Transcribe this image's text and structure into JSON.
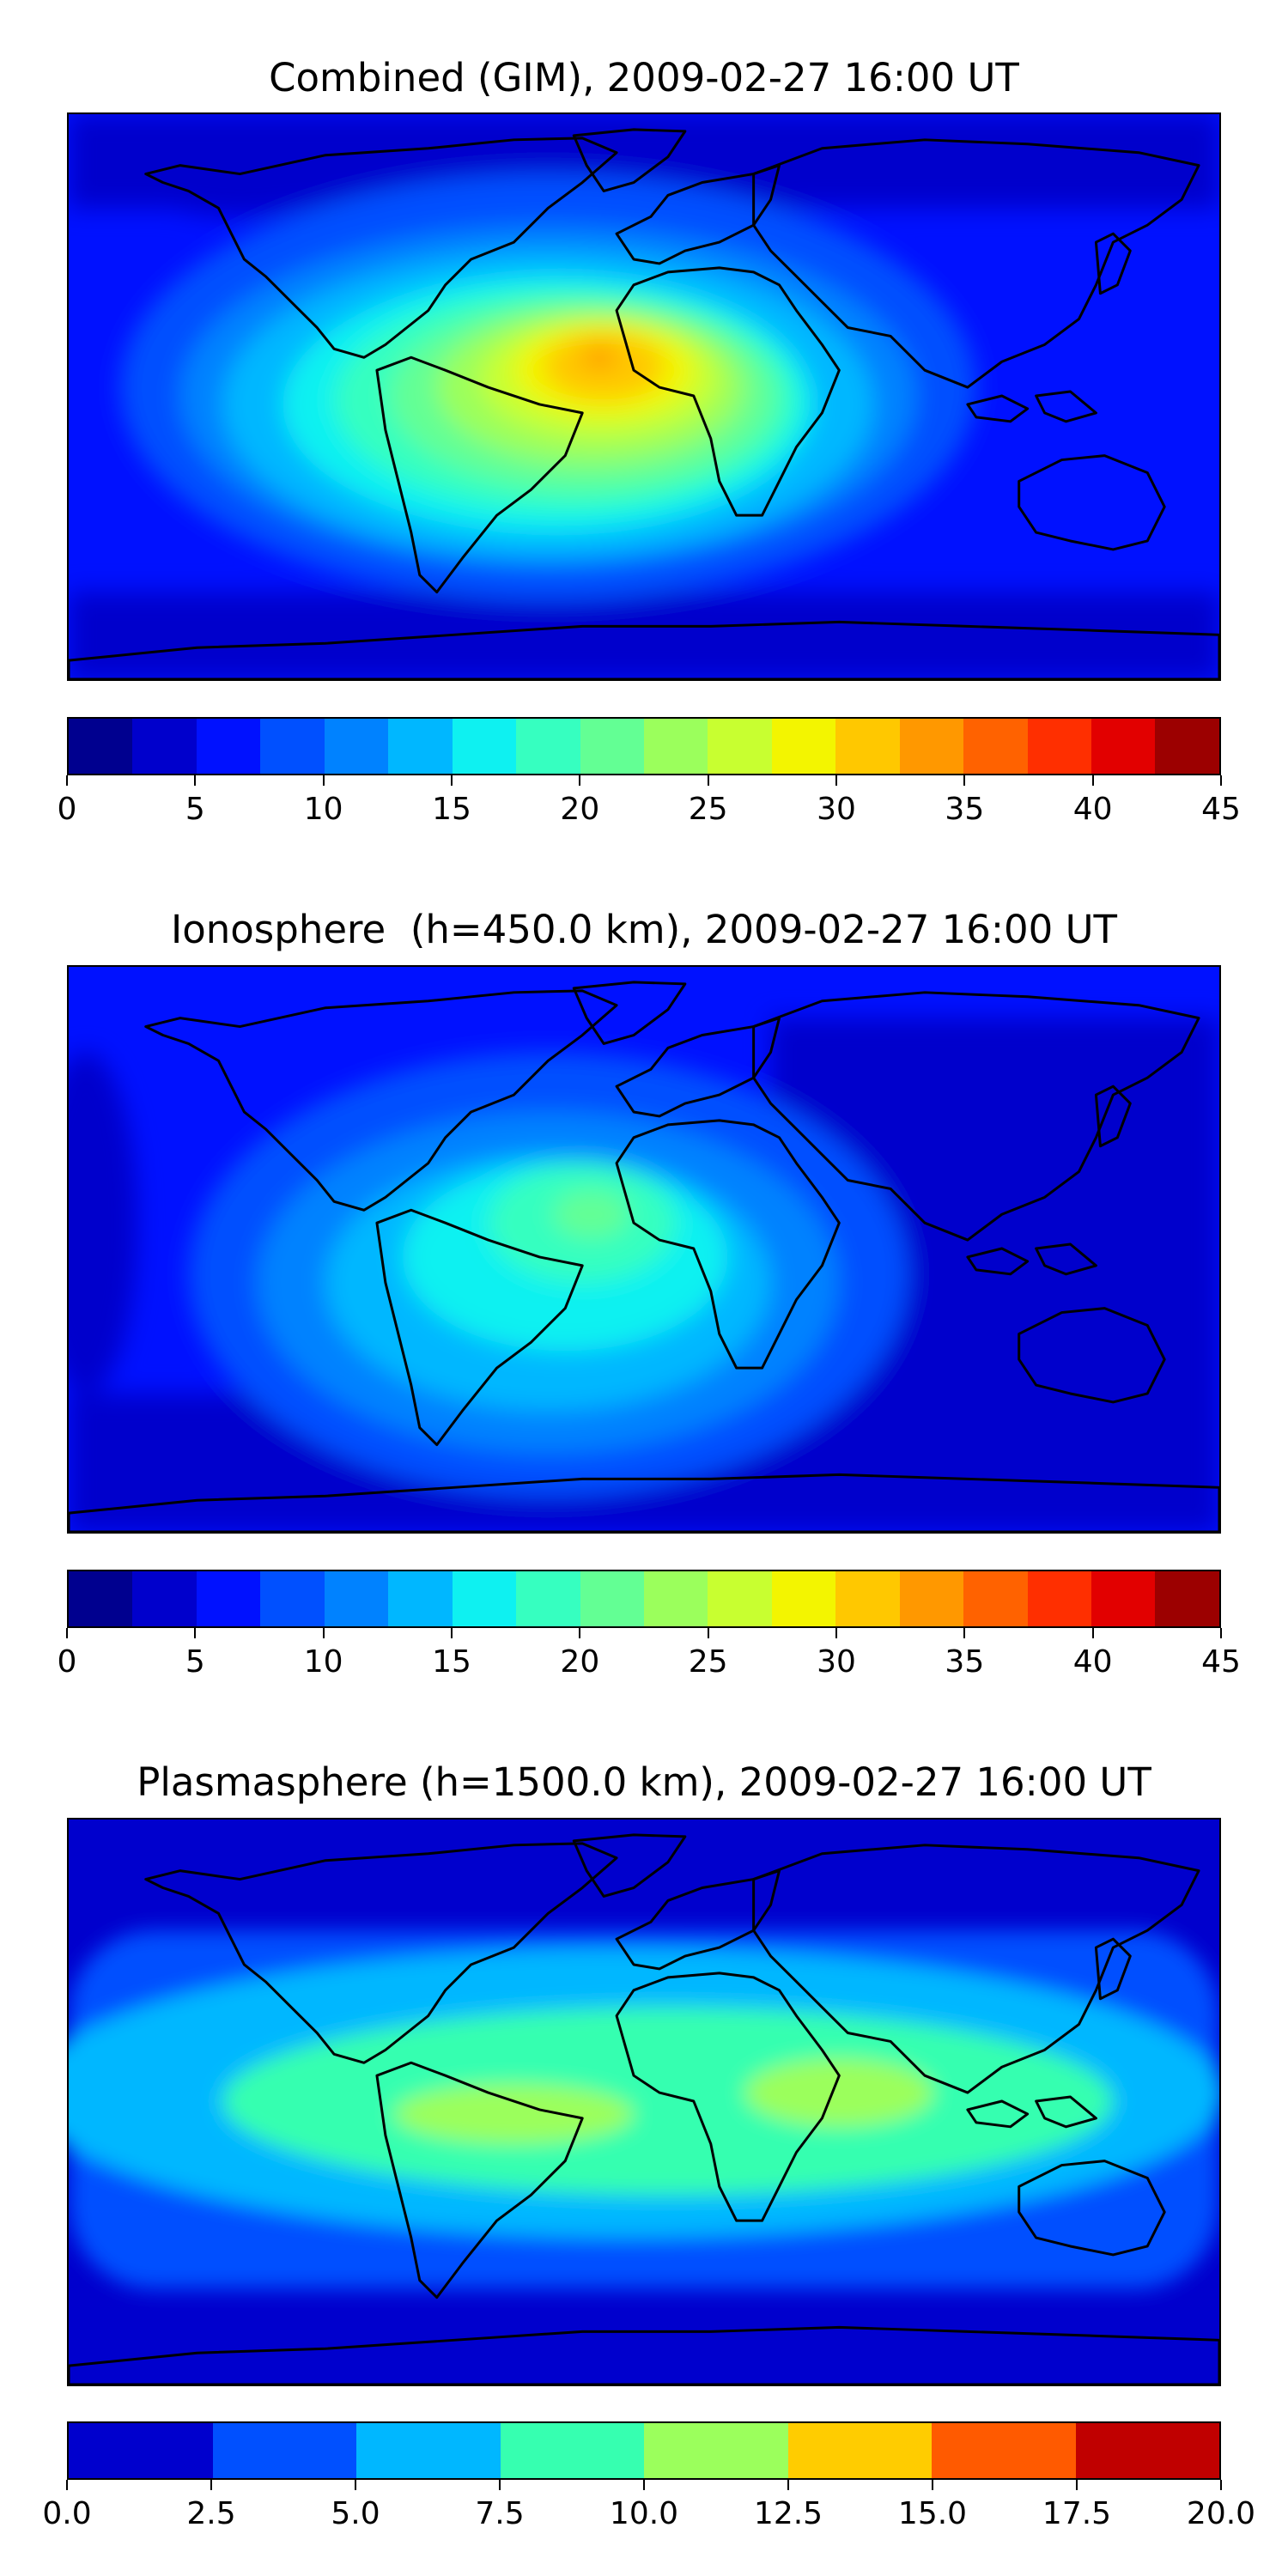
{
  "panels": [
    {
      "title": "Combined (GIM), 2009-02-27 16:00 UT",
      "colorbar": {
        "ticks": [
          "0",
          "5",
          "10",
          "15",
          "20",
          "25",
          "30",
          "35",
          "40",
          "45"
        ],
        "colors": [
          "#00008f",
          "#0000cc",
          "#0011ff",
          "#0050ff",
          "#0082ff",
          "#00b7ff",
          "#0ef1f1",
          "#36ffc0",
          "#63ff94",
          "#9bff5c",
          "#c8ff30",
          "#f3f500",
          "#ffc800",
          "#ff9800",
          "#ff6200",
          "#ff2f00",
          "#e20000",
          "#9c0000"
        ]
      }
    },
    {
      "title": "Ionosphere  (h=450.0 km), 2009-02-27 16:00 UT",
      "colorbar": {
        "ticks": [
          "0",
          "5",
          "10",
          "15",
          "20",
          "25",
          "30",
          "35",
          "40",
          "45"
        ],
        "colors": [
          "#00008f",
          "#0000cc",
          "#0011ff",
          "#0050ff",
          "#0082ff",
          "#00b7ff",
          "#0ef1f1",
          "#36ffc0",
          "#63ff94",
          "#9bff5c",
          "#c8ff30",
          "#f3f500",
          "#ffc800",
          "#ff9800",
          "#ff6200",
          "#ff2f00",
          "#e20000",
          "#9c0000"
        ]
      }
    },
    {
      "title": "Plasmasphere (h=1500.0 km), 2009-02-27 16:00 UT",
      "colorbar": {
        "ticks": [
          "0.0",
          "2.5",
          "5.0",
          "7.5",
          "10.0",
          "12.5",
          "15.0",
          "17.5",
          "20.0"
        ],
        "colors": [
          "#0000cd",
          "#0050ff",
          "#00b7ff",
          "#36ffb0",
          "#9bff5c",
          "#ffcc00",
          "#ff5a00",
          "#c00000"
        ]
      }
    }
  ]
}
